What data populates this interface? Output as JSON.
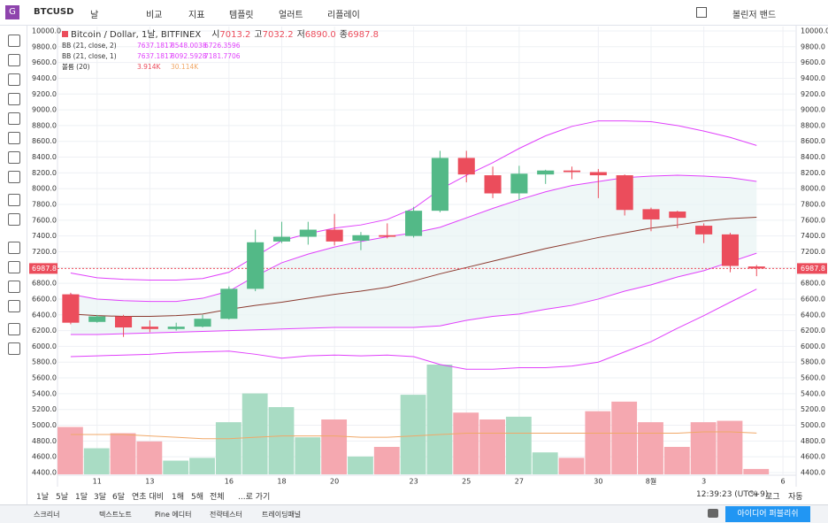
{
  "toolbar": {
    "symbol": "BTCUSD",
    "interval": "날",
    "compare": "비교",
    "indicators": "지표",
    "templates": "템플릿",
    "alerts": "얼러트",
    "replay": "리플레이",
    "study": "볼린저 밴드"
  },
  "legend": {
    "title": "Bitcoin / Dollar, 1날, BITFINEX",
    "ohlc": [
      {
        "label": "시",
        "value": "7013.2"
      },
      {
        "label": "고",
        "value": "7032.2"
      },
      {
        "label": "저",
        "value": "6890.0"
      },
      {
        "label": "종",
        "value": "6987.8"
      }
    ],
    "studies": [
      {
        "name": "BB (21, close, 2)",
        "values": [
          "7637.1817",
          "8548.0038",
          "6726.3596"
        ]
      },
      {
        "name": "BB (21, close, 1)",
        "values": [
          "7637.1817",
          "8092.5928",
          "7181.7706"
        ]
      },
      {
        "name": "볼륨 (20)",
        "values": [
          "3.914K",
          "30.114K"
        ]
      }
    ]
  },
  "chart_data": {
    "type": "candlestick",
    "categories": [
      null,
      "11",
      null,
      "13",
      null,
      null,
      "16",
      null,
      "18",
      null,
      "20",
      null,
      null,
      "23",
      null,
      "25",
      null,
      "27",
      null,
      null,
      "30",
      null,
      "8월",
      null,
      "3",
      null,
      null,
      "6"
    ],
    "open": [
      6660,
      6310,
      6380,
      6250,
      6220,
      6250,
      6350,
      6730,
      7330,
      7390,
      7480,
      7340,
      7410,
      7400,
      7720,
      8390,
      8170,
      7940,
      8180,
      8230,
      8210,
      8170,
      7740,
      7710,
      7530,
      7420,
      7013.2,
      null
    ],
    "high": [
      6680,
      6400,
      6400,
      6330,
      6300,
      6400,
      6760,
      7480,
      7580,
      7580,
      7680,
      7450,
      7560,
      7770,
      8480,
      8480,
      8280,
      8290,
      8240,
      8280,
      8250,
      8180,
      7760,
      7720,
      7560,
      7440,
      7032.2,
      null
    ],
    "low": [
      6280,
      6300,
      6120,
      6180,
      6200,
      6240,
      6340,
      6700,
      7310,
      7290,
      7280,
      7220,
      7370,
      7380,
      7700,
      8080,
      7880,
      7860,
      8060,
      8120,
      7880,
      7660,
      7460,
      7500,
      7310,
      6940,
      6890,
      null
    ],
    "close": [
      6300,
      6380,
      6240,
      6220,
      6250,
      6350,
      6730,
      7320,
      7390,
      7480,
      7330,
      7410,
      7390,
      7720,
      8390,
      8180,
      7940,
      8190,
      8230,
      8210,
      8170,
      7730,
      7610,
      7630,
      7420,
      7020,
      6987.8,
      null
    ],
    "up_color": "#53b987",
    "down_color": "#eb4d5c",
    "bands": [
      {
        "name": "BB2 upper",
        "color": "#e040fb",
        "values": [
          6930,
          6870,
          6850,
          6840,
          6840,
          6860,
          6940,
          7140,
          7340,
          7430,
          7500,
          7540,
          7610,
          7750,
          7990,
          8170,
          8330,
          8510,
          8670,
          8790,
          8860,
          8860,
          8850,
          8800,
          8730,
          8650,
          8548.0038,
          null
        ]
      },
      {
        "name": "BB1 upper",
        "color": "#e040fb",
        "values": [
          6660,
          6600,
          6580,
          6570,
          6570,
          6610,
          6700,
          6890,
          7060,
          7170,
          7260,
          7330,
          7390,
          7440,
          7510,
          7630,
          7750,
          7860,
          7960,
          8040,
          8090,
          8140,
          8160,
          8170,
          8160,
          8140,
          8092.5928,
          null
        ]
      },
      {
        "name": "basis",
        "color": "#8b3a2f",
        "values": [
          6410,
          6390,
          6380,
          6380,
          6390,
          6410,
          6470,
          6520,
          6560,
          6610,
          6660,
          6700,
          6750,
          6830,
          6920,
          7000,
          7080,
          7160,
          7240,
          7310,
          7380,
          7440,
          7500,
          7540,
          7590,
          7620,
          7637.1817,
          null
        ]
      },
      {
        "name": "BB1 lower",
        "color": "#e040fb",
        "values": [
          6150,
          6150,
          6160,
          6170,
          6180,
          6190,
          6200,
          6210,
          6220,
          6230,
          6240,
          6240,
          6240,
          6240,
          6260,
          6330,
          6380,
          6410,
          6470,
          6520,
          6600,
          6700,
          6780,
          6880,
          6960,
          7070,
          7181.7706,
          null
        ]
      },
      {
        "name": "BB2 lower",
        "color": "#e040fb",
        "values": [
          5870,
          5880,
          5890,
          5900,
          5920,
          5930,
          5940,
          5900,
          5850,
          5880,
          5890,
          5880,
          5890,
          5870,
          5770,
          5710,
          5710,
          5730,
          5730,
          5750,
          5800,
          5930,
          6060,
          6230,
          6390,
          6560,
          6726.3596,
          null
        ]
      }
    ],
    "band_fill": "#e8f4f4",
    "volume": [
      34.5,
      19,
      30,
      24,
      10,
      12,
      38,
      59,
      49,
      27,
      40,
      13,
      20,
      58,
      80,
      45,
      40,
      42,
      16,
      12,
      46,
      53,
      38,
      20,
      38,
      39,
      3.914,
      null
    ],
    "volume_ma": [
      29,
      29,
      29,
      28,
      27,
      26,
      26,
      27,
      28,
      28,
      28,
      27,
      27,
      28,
      29,
      30,
      30,
      30,
      30,
      30,
      30,
      30,
      30,
      30,
      31,
      31,
      30.114,
      null
    ],
    "volume_ma_color": "#f0a868",
    "volume_up_color": "#a9dcc4",
    "volume_down_color": "#f5a8b0",
    "volume_ylim": [
      0,
      80
    ],
    "last_price": 6987.8,
    "ylim": [
      4366,
      10056
    ],
    "yticks": [
      {
        "value": 4400,
        "label": "4400.0"
      },
      {
        "value": 4600,
        "label": "4600.0"
      },
      {
        "value": 4800,
        "label": "4800.0"
      },
      {
        "value": 5000,
        "label": "5000.0"
      },
      {
        "value": 5200,
        "label": "5200.0"
      },
      {
        "value": 5400,
        "label": "5400.0"
      },
      {
        "value": 5600,
        "label": "5600.0"
      },
      {
        "value": 5800,
        "label": "5800.0"
      },
      {
        "value": 6000,
        "label": "6000.0"
      },
      {
        "value": 6200,
        "label": "6200.0"
      },
      {
        "value": 6400,
        "label": "6400.0"
      },
      {
        "value": 6600,
        "label": "6600.0"
      },
      {
        "value": 6800,
        "label": "6800.0"
      },
      {
        "value": 7000,
        "label": "7000.0"
      },
      {
        "value": 7200,
        "label": "7200.0"
      },
      {
        "value": 7400,
        "label": "7400.0"
      },
      {
        "value": 7600,
        "label": "7600.0"
      },
      {
        "value": 7800,
        "label": "7800.0"
      },
      {
        "value": 8000,
        "label": "8000.0"
      },
      {
        "value": 8200,
        "label": "8200.0"
      },
      {
        "value": 8400,
        "label": "8400.0"
      },
      {
        "value": 8600,
        "label": "8600.0"
      },
      {
        "value": 8800,
        "label": "8800.0"
      },
      {
        "value": 9000,
        "label": "9000.0"
      },
      {
        "value": 9200,
        "label": "9200.0"
      },
      {
        "value": 9400,
        "label": "9400.0"
      },
      {
        "value": 9600,
        "label": "9600.0"
      },
      {
        "value": 9800,
        "label": "9800.0"
      },
      {
        "value": 10000,
        "label": "10000.0"
      }
    ],
    "grid": true
  },
  "range_bar": {
    "ranges": [
      "1날",
      "5날",
      "1달",
      "3달",
      "6달",
      "연초 대비",
      "1해",
      "5해",
      "전체"
    ],
    "goto": "...로 가기",
    "time": "12:39:23 (UTC+9)",
    "percent": "%",
    "log": "로그",
    "auto": "자동"
  },
  "bottom_tabs": {
    "tabs": [
      "스크리너",
      "텍스트노트",
      "Pine 에디터",
      "전략테스터",
      "트레이딩패널"
    ],
    "publish": "아이디어 퍼블리쉬"
  }
}
